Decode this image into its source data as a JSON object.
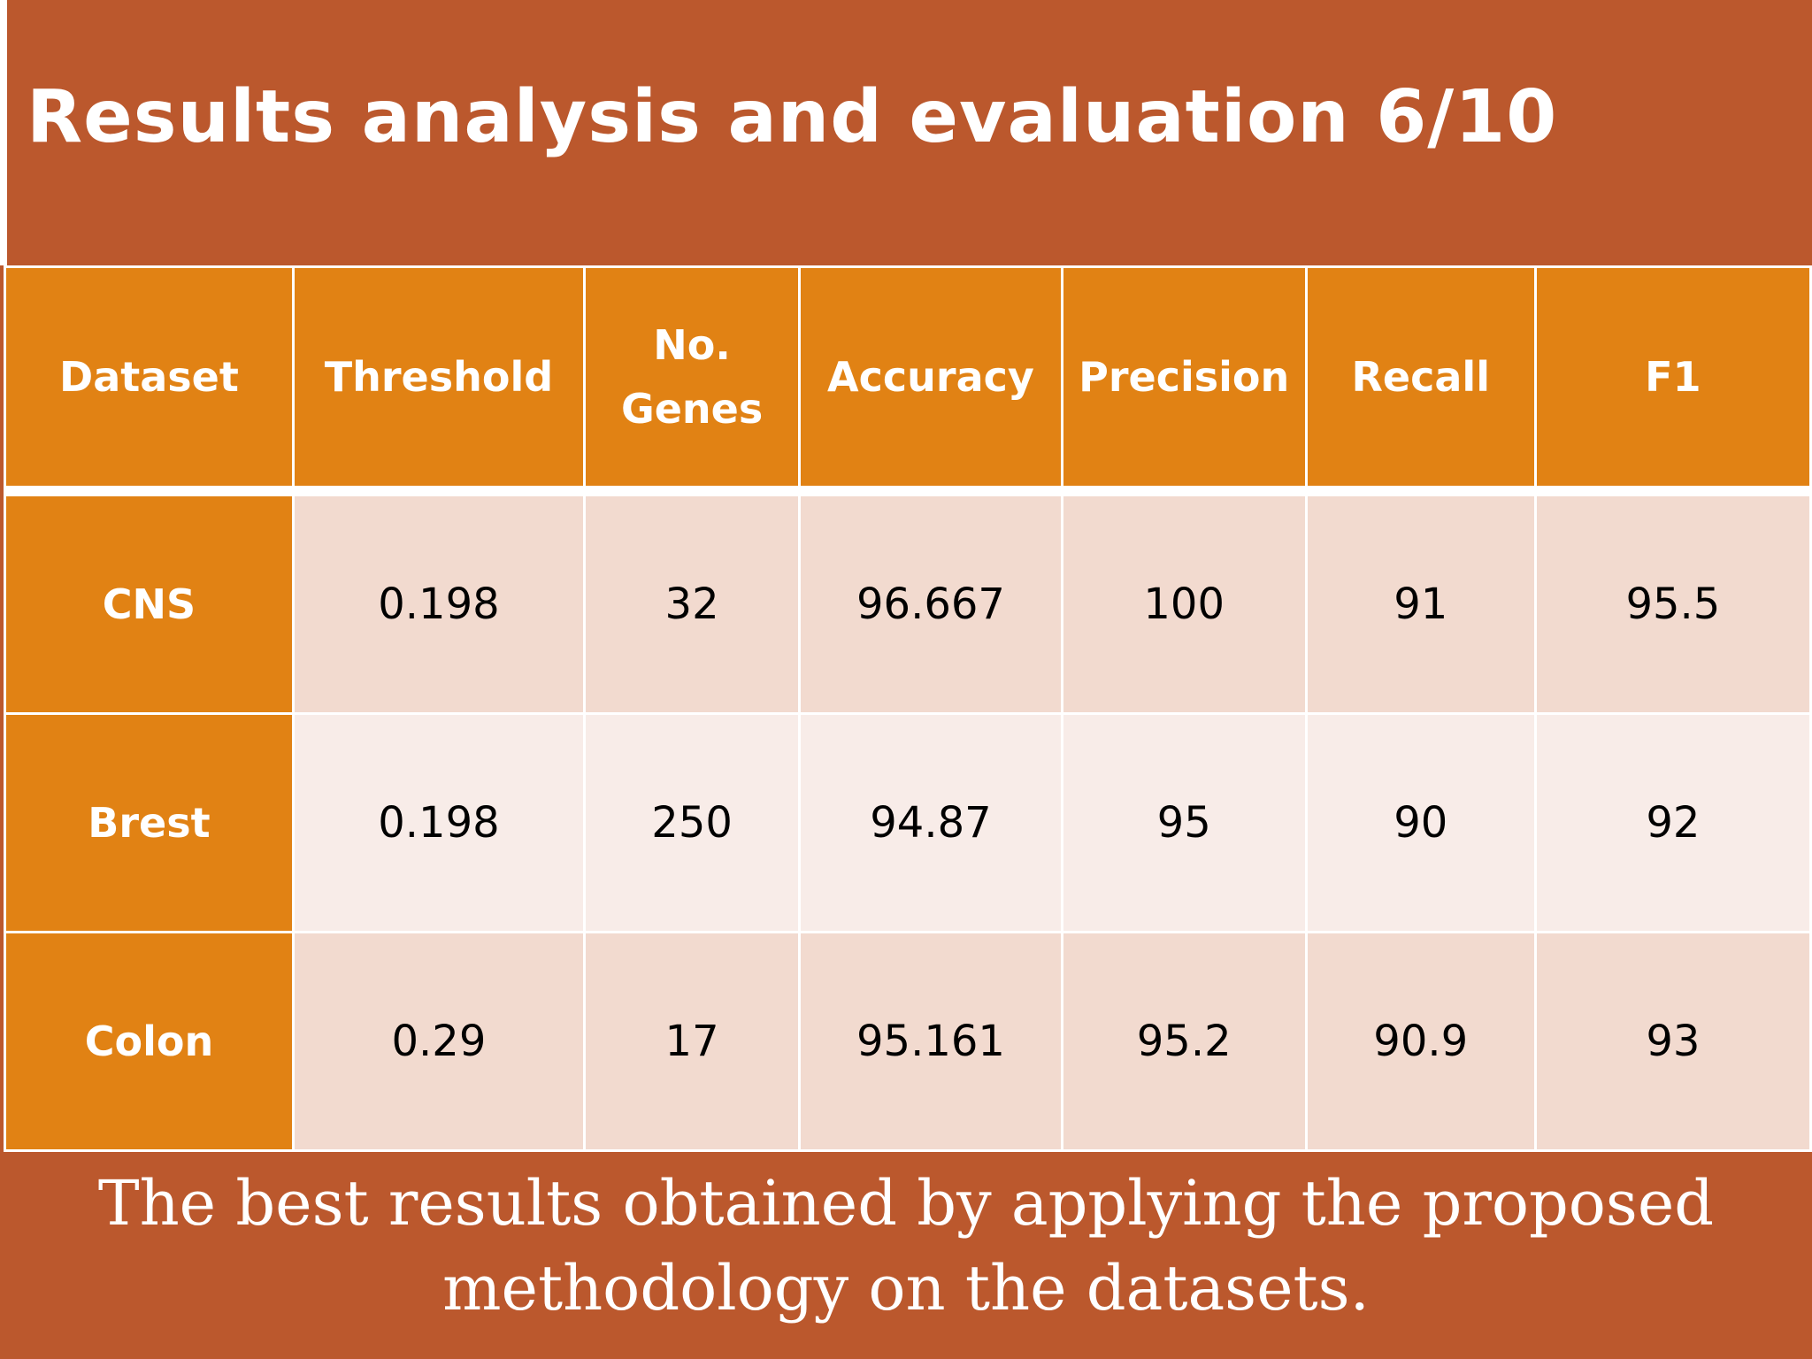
{
  "title": "Results analysis and evaluation 6/10",
  "table": {
    "headers": [
      "Dataset",
      "Threshold",
      "No. Genes",
      "Accuracy",
      "Precision",
      "Recall",
      "F1"
    ],
    "rows": [
      {
        "dataset": "CNS",
        "threshold": "0.198",
        "genes": "32",
        "accuracy": "96.667",
        "precision": "100",
        "recall": "91",
        "f1": "95.5"
      },
      {
        "dataset": "Brest",
        "threshold": "0.198",
        "genes": "250",
        "accuracy": "94.87",
        "precision": "95",
        "recall": "90",
        "f1": "92"
      },
      {
        "dataset": "Colon",
        "threshold": "0.29",
        "genes": "17",
        "accuracy": "95.161",
        "precision": "95.2",
        "recall": "90.9",
        "f1": "93"
      }
    ]
  },
  "caption": "The best results obtained by applying the proposed methodology on the datasets.",
  "colors": {
    "background": "#bb582d",
    "header": "#e18214",
    "band_dark": "#f2dacf",
    "band_light": "#f8ece8"
  }
}
